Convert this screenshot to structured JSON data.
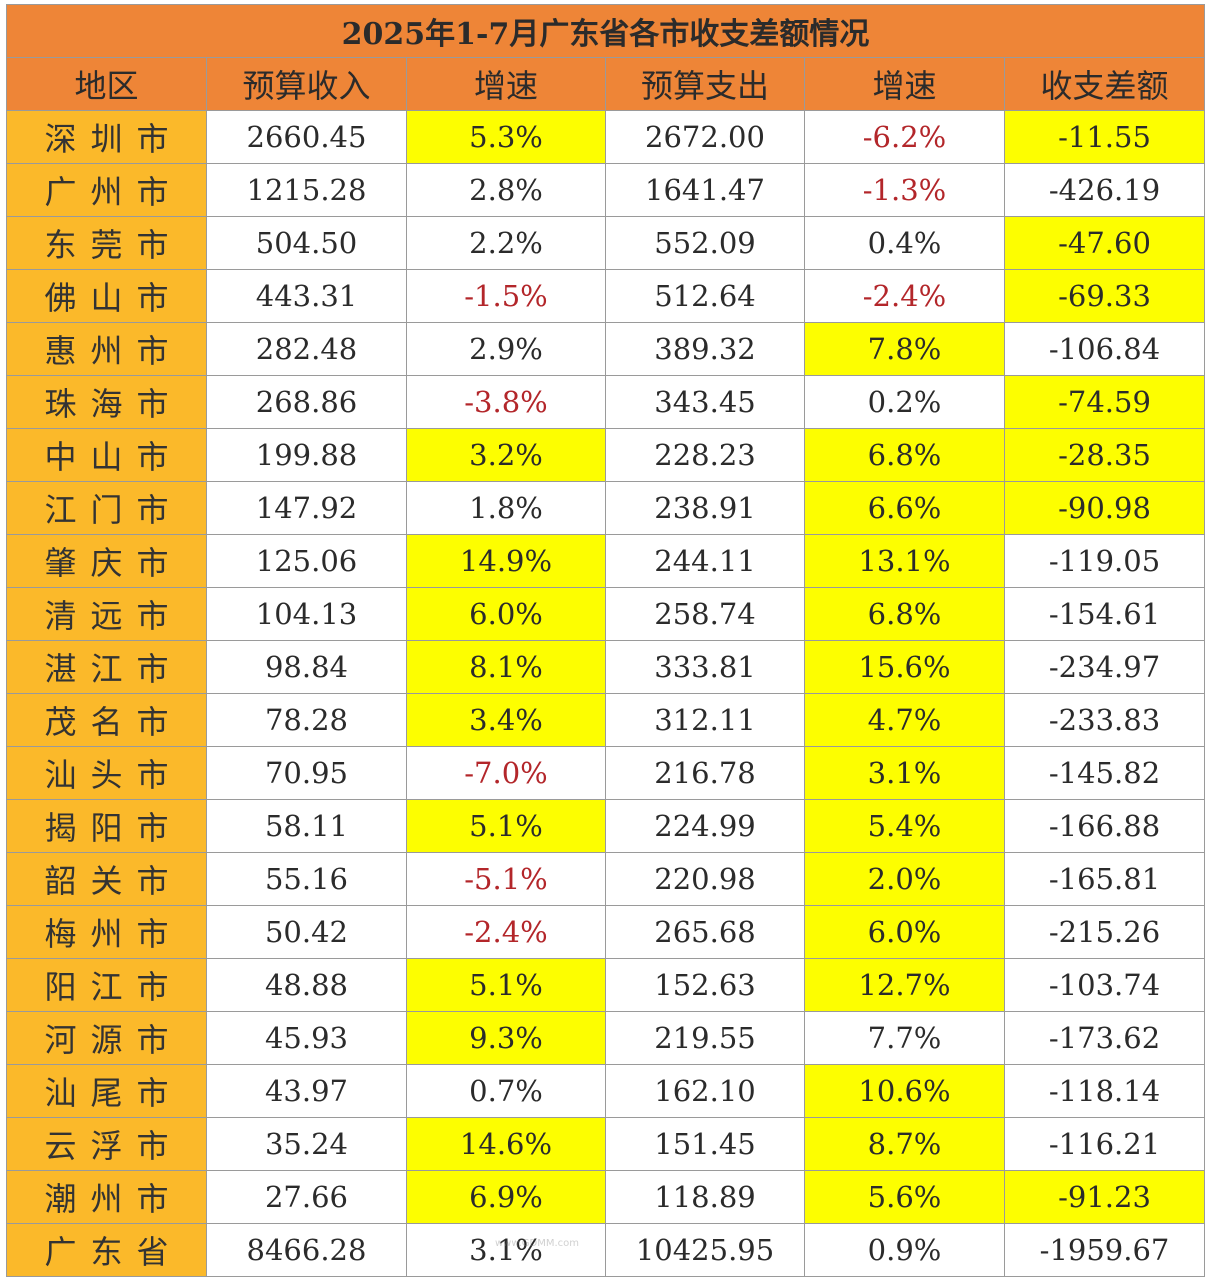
{
  "title": "2025年1-7月广东省各市收支差额情况",
  "headers": [
    "地区",
    "预算收入",
    "增速",
    "预算支出",
    "增速",
    "收支差额"
  ],
  "colors": {
    "header_bg": "#ee8537",
    "region_bg": "#fbb92a",
    "highlight": "#fdfe00",
    "negative_text": "#b3262a"
  },
  "rows": [
    {
      "region": "深圳市",
      "income": "2660.45",
      "income_growth": "5.3%",
      "expense": "2672.00",
      "expense_growth": "-6.2%",
      "diff": "-11.55",
      "hl": [
        false,
        true,
        false,
        false,
        true
      ]
    },
    {
      "region": "广州市",
      "income": "1215.28",
      "income_growth": "2.8%",
      "expense": "1641.47",
      "expense_growth": "-1.3%",
      "diff": "-426.19",
      "hl": [
        false,
        false,
        false,
        false,
        false
      ]
    },
    {
      "region": "东莞市",
      "income": "504.50",
      "income_growth": "2.2%",
      "expense": "552.09",
      "expense_growth": "0.4%",
      "diff": "-47.60",
      "hl": [
        false,
        false,
        false,
        false,
        true
      ]
    },
    {
      "region": "佛山市",
      "income": "443.31",
      "income_growth": "-1.5%",
      "expense": "512.64",
      "expense_growth": "-2.4%",
      "diff": "-69.33",
      "hl": [
        false,
        false,
        false,
        false,
        true
      ]
    },
    {
      "region": "惠州市",
      "income": "282.48",
      "income_growth": "2.9%",
      "expense": "389.32",
      "expense_growth": "7.8%",
      "diff": "-106.84",
      "hl": [
        false,
        false,
        false,
        true,
        false
      ]
    },
    {
      "region": "珠海市",
      "income": "268.86",
      "income_growth": "-3.8%",
      "expense": "343.45",
      "expense_growth": "0.2%",
      "diff": "-74.59",
      "hl": [
        false,
        false,
        false,
        false,
        true
      ]
    },
    {
      "region": "中山市",
      "income": "199.88",
      "income_growth": "3.2%",
      "expense": "228.23",
      "expense_growth": "6.8%",
      "diff": "-28.35",
      "hl": [
        false,
        true,
        false,
        true,
        true
      ]
    },
    {
      "region": "江门市",
      "income": "147.92",
      "income_growth": "1.8%",
      "expense": "238.91",
      "expense_growth": "6.6%",
      "diff": "-90.98",
      "hl": [
        false,
        false,
        false,
        true,
        true
      ]
    },
    {
      "region": "肇庆市",
      "income": "125.06",
      "income_growth": "14.9%",
      "expense": "244.11",
      "expense_growth": "13.1%",
      "diff": "-119.05",
      "hl": [
        false,
        true,
        false,
        true,
        false
      ]
    },
    {
      "region": "清远市",
      "income": "104.13",
      "income_growth": "6.0%",
      "expense": "258.74",
      "expense_growth": "6.8%",
      "diff": "-154.61",
      "hl": [
        false,
        true,
        false,
        true,
        false
      ]
    },
    {
      "region": "湛江市",
      "income": "98.84",
      "income_growth": "8.1%",
      "expense": "333.81",
      "expense_growth": "15.6%",
      "diff": "-234.97",
      "hl": [
        false,
        true,
        false,
        true,
        false
      ]
    },
    {
      "region": "茂名市",
      "income": "78.28",
      "income_growth": "3.4%",
      "expense": "312.11",
      "expense_growth": "4.7%",
      "diff": "-233.83",
      "hl": [
        false,
        true,
        false,
        true,
        false
      ]
    },
    {
      "region": "汕头市",
      "income": "70.95",
      "income_growth": "-7.0%",
      "expense": "216.78",
      "expense_growth": "3.1%",
      "diff": "-145.82",
      "hl": [
        false,
        false,
        false,
        true,
        false
      ]
    },
    {
      "region": "揭阳市",
      "income": "58.11",
      "income_growth": "5.1%",
      "expense": "224.99",
      "expense_growth": "5.4%",
      "diff": "-166.88",
      "hl": [
        false,
        true,
        false,
        true,
        false
      ]
    },
    {
      "region": "韶关市",
      "income": "55.16",
      "income_growth": "-5.1%",
      "expense": "220.98",
      "expense_growth": "2.0%",
      "diff": "-165.81",
      "hl": [
        false,
        false,
        false,
        true,
        false
      ]
    },
    {
      "region": "梅州市",
      "income": "50.42",
      "income_growth": "-2.4%",
      "expense": "265.68",
      "expense_growth": "6.0%",
      "diff": "-215.26",
      "hl": [
        false,
        false,
        false,
        true,
        false
      ]
    },
    {
      "region": "阳江市",
      "income": "48.88",
      "income_growth": "5.1%",
      "expense": "152.63",
      "expense_growth": "12.7%",
      "diff": "-103.74",
      "hl": [
        false,
        true,
        false,
        true,
        false
      ]
    },
    {
      "region": "河源市",
      "income": "45.93",
      "income_growth": "9.3%",
      "expense": "219.55",
      "expense_growth": "7.7%",
      "diff": "-173.62",
      "hl": [
        false,
        true,
        false,
        false,
        false
      ]
    },
    {
      "region": "汕尾市",
      "income": "43.97",
      "income_growth": "0.7%",
      "expense": "162.10",
      "expense_growth": "10.6%",
      "diff": "-118.14",
      "hl": [
        false,
        false,
        false,
        true,
        false
      ]
    },
    {
      "region": "云浮市",
      "income": "35.24",
      "income_growth": "14.6%",
      "expense": "151.45",
      "expense_growth": "8.7%",
      "diff": "-116.21",
      "hl": [
        false,
        true,
        false,
        true,
        false
      ]
    },
    {
      "region": "潮州市",
      "income": "27.66",
      "income_growth": "6.9%",
      "expense": "118.89",
      "expense_growth": "5.6%",
      "diff": "-91.23",
      "hl": [
        false,
        true,
        false,
        true,
        true
      ]
    },
    {
      "region": "广东省",
      "income": "8466.28",
      "income_growth": "3.1%",
      "expense": "10425.95",
      "expense_growth": "0.9%",
      "diff": "-1959.67",
      "hl": [
        false,
        false,
        false,
        false,
        false
      ]
    }
  ],
  "watermark": "www.GDMM.com"
}
